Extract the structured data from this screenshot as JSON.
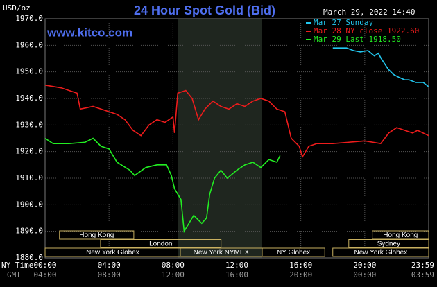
{
  "chart_data": {
    "type": "line",
    "title": "24 Hour Spot Gold (Bid)",
    "subtitle": "March 29, 2022 14:40",
    "annotation": "www.kitco.com",
    "y_label": "USD/oz",
    "x_label": "NY Time",
    "x2_label": "GMT",
    "xlim": [
      0,
      24
    ],
    "ylim": [
      1880,
      1970
    ],
    "grid": true,
    "yticks": [
      {
        "value": 1880,
        "label": "1880.0"
      },
      {
        "value": 1890,
        "label": "1890.0"
      },
      {
        "value": 1900,
        "label": "1900.0"
      },
      {
        "value": 1910,
        "label": "1910.0"
      },
      {
        "value": 1920,
        "label": "1920.0"
      },
      {
        "value": 1930,
        "label": "1930.0"
      },
      {
        "value": 1940,
        "label": "1940.0"
      },
      {
        "value": 1950,
        "label": "1950.0"
      },
      {
        "value": 1960,
        "label": "1960.0"
      },
      {
        "value": 1970,
        "label": "1970.0"
      }
    ],
    "xticks": [
      {
        "value": 0,
        "label": "00:00"
      },
      {
        "value": 4,
        "label": "04:00"
      },
      {
        "value": 8,
        "label": "08:00"
      },
      {
        "value": 12,
        "label": "12:00"
      },
      {
        "value": 16,
        "label": "16:00"
      },
      {
        "value": 20,
        "label": "20:00"
      },
      {
        "value": 24,
        "label": "23:59"
      }
    ],
    "x2ticks": [
      "04:00",
      "08:00",
      "12:00",
      "16:00",
      "20:00",
      "00:00",
      "03:59"
    ],
    "shaded_range": [
      8.33,
      13.58
    ],
    "sessions": [
      {
        "label": "Hong Kong",
        "start": 0.9,
        "end": 5.55,
        "row": 0
      },
      {
        "label": "Hong Kong",
        "start": 20.47,
        "end": 24,
        "row": 0
      },
      {
        "label": "London",
        "start": 3.47,
        "end": 11.01,
        "row": 1
      },
      {
        "label": "Sydney",
        "start": 19.0,
        "end": 24,
        "row": 1
      },
      {
        "label": "New York Globex",
        "start": 0,
        "end": 8.46,
        "row": 2
      },
      {
        "label": "New York NYMEX",
        "start": 8.46,
        "end": 13.58,
        "row": 2
      },
      {
        "label": "NY Globex",
        "start": 13.58,
        "end": 17.5,
        "row": 2
      },
      {
        "label": "New York Globex",
        "start": 18.0,
        "end": 24,
        "row": 2
      }
    ],
    "series": [
      {
        "name": "Mar 27 Sunday",
        "color": "#22c8f0",
        "x": [
          18.0,
          18.86,
          19.3,
          19.73,
          20.2,
          20.6,
          20.85,
          21.03,
          21.47,
          21.8,
          22.12,
          22.5,
          22.77,
          23.2,
          23.66,
          23.98
        ],
        "values": [
          1959,
          1959,
          1958,
          1957.5,
          1958,
          1956,
          1957,
          1955,
          1951,
          1949,
          1948,
          1947,
          1947,
          1946,
          1946,
          1944.5
        ]
      },
      {
        "name": "Mar 28 NY close 1922.60",
        "color": "#ee1c1c",
        "x": [
          0,
          1,
          2,
          2.2,
          3,
          4,
          4.5,
          5,
          5.5,
          6,
          6.5,
          7,
          7.5,
          8,
          8.1,
          8.3,
          8.8,
          9.2,
          9.6,
          10,
          10.5,
          11,
          11.5,
          12,
          12.5,
          13,
          13.5,
          14,
          14.5,
          15,
          15.4,
          15.9,
          16.1,
          16.5,
          17,
          18,
          19,
          20,
          21,
          21.5,
          22,
          22.5,
          23,
          23.3,
          24
        ],
        "values": [
          1945,
          1944,
          1942,
          1936,
          1937,
          1935,
          1934,
          1932,
          1928,
          1926,
          1930,
          1932,
          1931,
          1933,
          1927,
          1942,
          1943,
          1940,
          1932,
          1936,
          1939,
          1937,
          1936,
          1938,
          1937,
          1939,
          1940,
          1939,
          1936,
          1935,
          1925,
          1922,
          1918,
          1922,
          1923,
          1923,
          1923.5,
          1924,
          1923,
          1927,
          1929,
          1928,
          1927,
          1928,
          1926
        ]
      },
      {
        "name": "Mar 29 Last 1918.50",
        "color": "#22ee22",
        "x": [
          0,
          0.5,
          1.5,
          2.5,
          3,
          3.5,
          4,
          4.5,
          5.3,
          5.6,
          6.3,
          7,
          7.6,
          7.9,
          8.1,
          8.5,
          8.7,
          9,
          9.3,
          9.8,
          10.1,
          10.3,
          10.6,
          11,
          11.4,
          12,
          12.5,
          13,
          13.5,
          14,
          14.5,
          14.7
        ],
        "values": [
          1925,
          1923,
          1923,
          1923.5,
          1925,
          1922,
          1921,
          1916,
          1913,
          1911,
          1914,
          1915,
          1915,
          1911,
          1906,
          1902,
          1890,
          1893,
          1896,
          1893,
          1895,
          1904,
          1910,
          1913,
          1910,
          1913,
          1915,
          1916,
          1914,
          1917,
          1916,
          1918.5
        ]
      }
    ]
  }
}
